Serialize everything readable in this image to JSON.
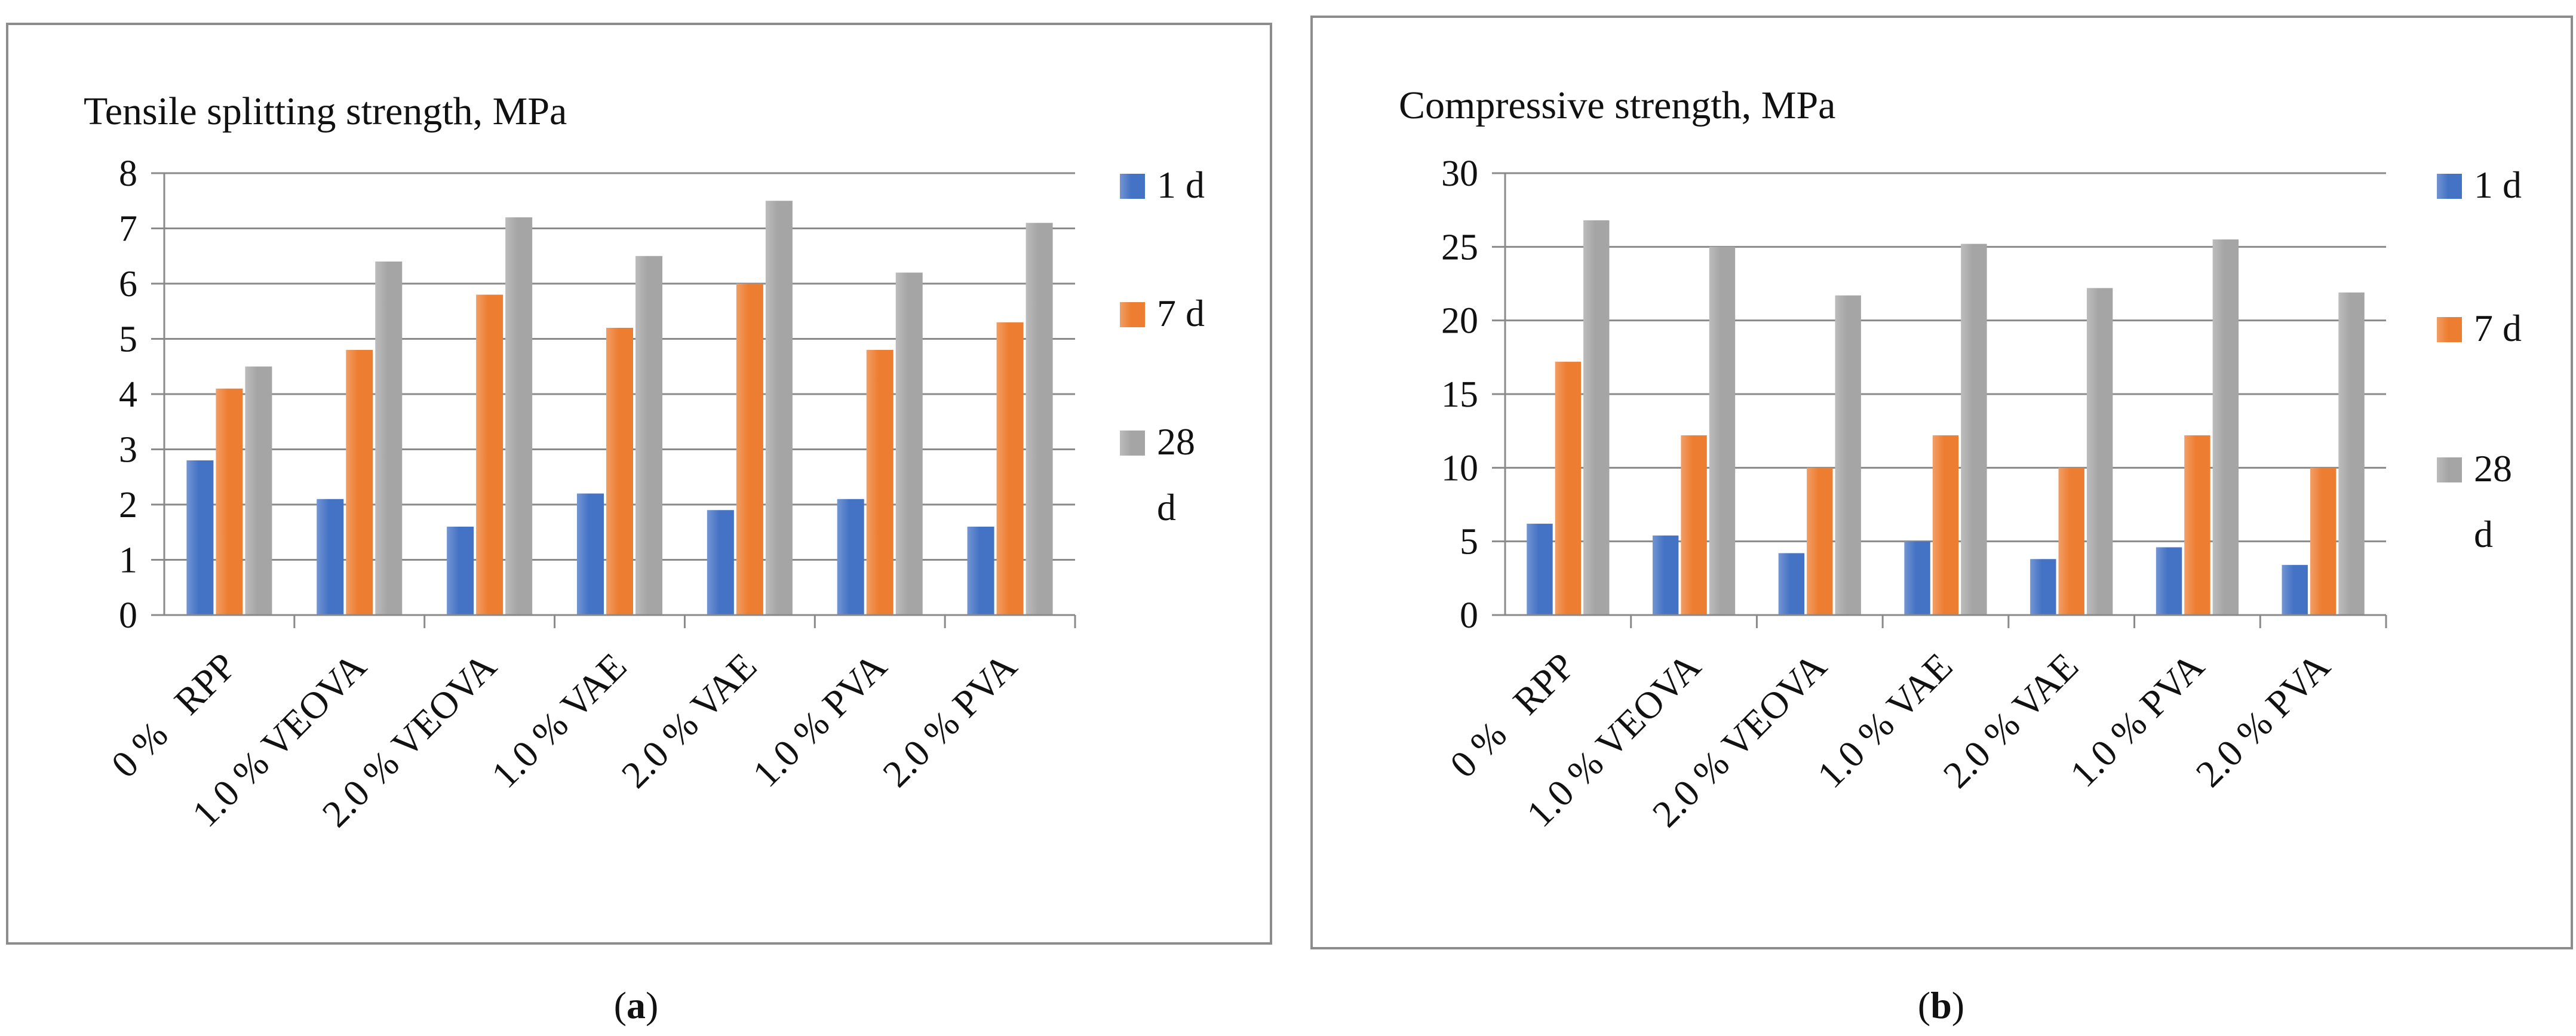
{
  "colors": {
    "1 d": "#4472C4",
    "7 d": "#ED7D31",
    "28 d": "#A5A5A5"
  },
  "chart_data": [
    {
      "type": "bar",
      "title": "Tensile splitting strength, MPa",
      "caption": "a",
      "categories": [
        "0 %   RPP",
        "1.0 % VEOVA",
        "2.0 % VEOVA",
        "1.0 % VAE",
        "2.0 % VAE",
        "1.0 % PVA",
        "2.0 % PVA"
      ],
      "yticks": [
        "0",
        "1",
        "2",
        "3",
        "4",
        "5",
        "6",
        "7",
        "8"
      ],
      "ylim": [
        0,
        8
      ],
      "grid": true,
      "legend_position": "right",
      "series": [
        {
          "name": "1 d",
          "legend_lines": [
            "1 d"
          ],
          "values": [
            2.8,
            2.1,
            1.6,
            2.2,
            1.9,
            2.1,
            1.6
          ]
        },
        {
          "name": "7 d",
          "legend_lines": [
            "7 d"
          ],
          "values": [
            4.1,
            4.8,
            5.8,
            5.2,
            6.0,
            4.8,
            5.3
          ]
        },
        {
          "name": "28 d",
          "legend_lines": [
            "28",
            "d"
          ],
          "values": [
            4.5,
            6.4,
            7.2,
            6.5,
            7.5,
            6.2,
            7.1
          ]
        }
      ]
    },
    {
      "type": "bar",
      "title": "Compressive strength, MPa",
      "caption": "b",
      "categories": [
        "0 %   RPP",
        "1.0 % VEOVA",
        "2.0 % VEOVA",
        "1.0 % VAE",
        "2.0 % VAE",
        "1.0 % PVA",
        "2.0 % PVA"
      ],
      "yticks": [
        "0",
        "5",
        "10",
        "15",
        "20",
        "25",
        "30"
      ],
      "ylim": [
        0,
        30
      ],
      "grid": true,
      "legend_position": "right",
      "series": [
        {
          "name": "1 d",
          "legend_lines": [
            "1 d"
          ],
          "values": [
            6.2,
            5.4,
            4.2,
            5.0,
            3.8,
            4.6,
            3.4
          ]
        },
        {
          "name": "7 d",
          "legend_lines": [
            "7 d"
          ],
          "values": [
            17.2,
            12.2,
            10.0,
            12.2,
            10.0,
            12.2,
            10.0
          ]
        },
        {
          "name": "28 d",
          "legend_lines": [
            "28",
            "d"
          ],
          "values": [
            26.8,
            25.0,
            21.7,
            25.2,
            22.2,
            25.5,
            21.9
          ]
        }
      ]
    }
  ]
}
